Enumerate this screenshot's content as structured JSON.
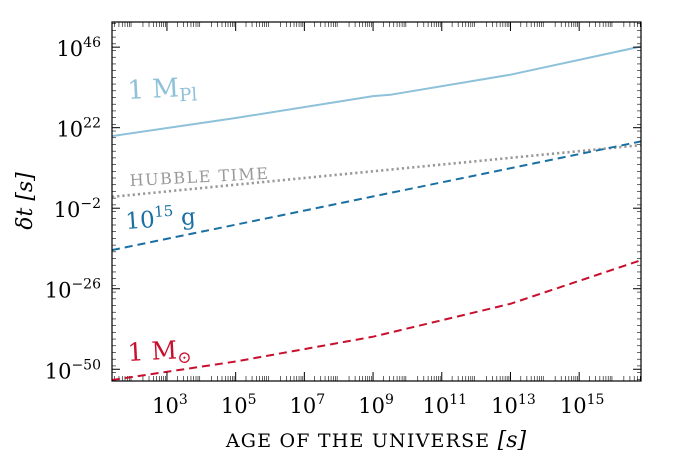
{
  "chart_data": {
    "type": "line",
    "xlabel": "AGE OF THE UNIVERSE [s]",
    "ylabel": "δt [s]",
    "x_scale": "log10",
    "y_scale": "log10",
    "xlim_log10": [
      1.4,
      16.8
    ],
    "ylim_log10": [
      -53.5,
      53.5
    ],
    "x_ticks": [
      {
        "base": "10",
        "exp": "3",
        "log": 3
      },
      {
        "base": "10",
        "exp": "5",
        "log": 5
      },
      {
        "base": "10",
        "exp": "7",
        "log": 7
      },
      {
        "base": "10",
        "exp": "9",
        "log": 9
      },
      {
        "base": "10",
        "exp": "11",
        "log": 11
      },
      {
        "base": "10",
        "exp": "13",
        "log": 13
      },
      {
        "base": "10",
        "exp": "15",
        "log": 15
      }
    ],
    "y_ticks": [
      {
        "base": "10",
        "exp": "46",
        "log": 46
      },
      {
        "base": "10",
        "exp": "22",
        "log": 22
      },
      {
        "base": "10",
        "exp": "−2",
        "log": -2
      },
      {
        "base": "10",
        "exp": "−26",
        "log": -26
      },
      {
        "base": "10",
        "exp": "−50",
        "log": -50
      }
    ],
    "grid": false,
    "series": [
      {
        "name": "1 M_Pl",
        "label_main": "1 M",
        "label_sub": "Pl",
        "color": "#8ec1da",
        "style": "solid",
        "points": [
          [
            1.4,
            19.5
          ],
          [
            5,
            24.9
          ],
          [
            9,
            31.4
          ],
          [
            9.5,
            31.8
          ],
          [
            13,
            37.8
          ],
          [
            16.8,
            46.2
          ]
        ]
      },
      {
        "name": "HUBBLE TIME",
        "label_main": "HUBBLE TIME",
        "color": "#999999",
        "style": "dotted",
        "points": [
          [
            1.4,
            1.4
          ],
          [
            16.8,
            16.8
          ]
        ]
      },
      {
        "name": "10^15 g",
        "label_main": "10",
        "label_sup": "15",
        "label_tail": " g",
        "color": "#1a6fa3",
        "style": "dashed",
        "points": [
          [
            1.4,
            -14.5
          ],
          [
            16.8,
            17.9
          ]
        ]
      },
      {
        "name": "1 M_sun",
        "label_main": "1 M",
        "label_sub": "⊙",
        "color": "#c8102e",
        "style": "dashed",
        "points": [
          [
            1.4,
            -53.2
          ],
          [
            5,
            -47.7
          ],
          [
            9,
            -40.3
          ],
          [
            13,
            -30.5
          ],
          [
            16.8,
            -17.5
          ]
        ]
      }
    ]
  }
}
